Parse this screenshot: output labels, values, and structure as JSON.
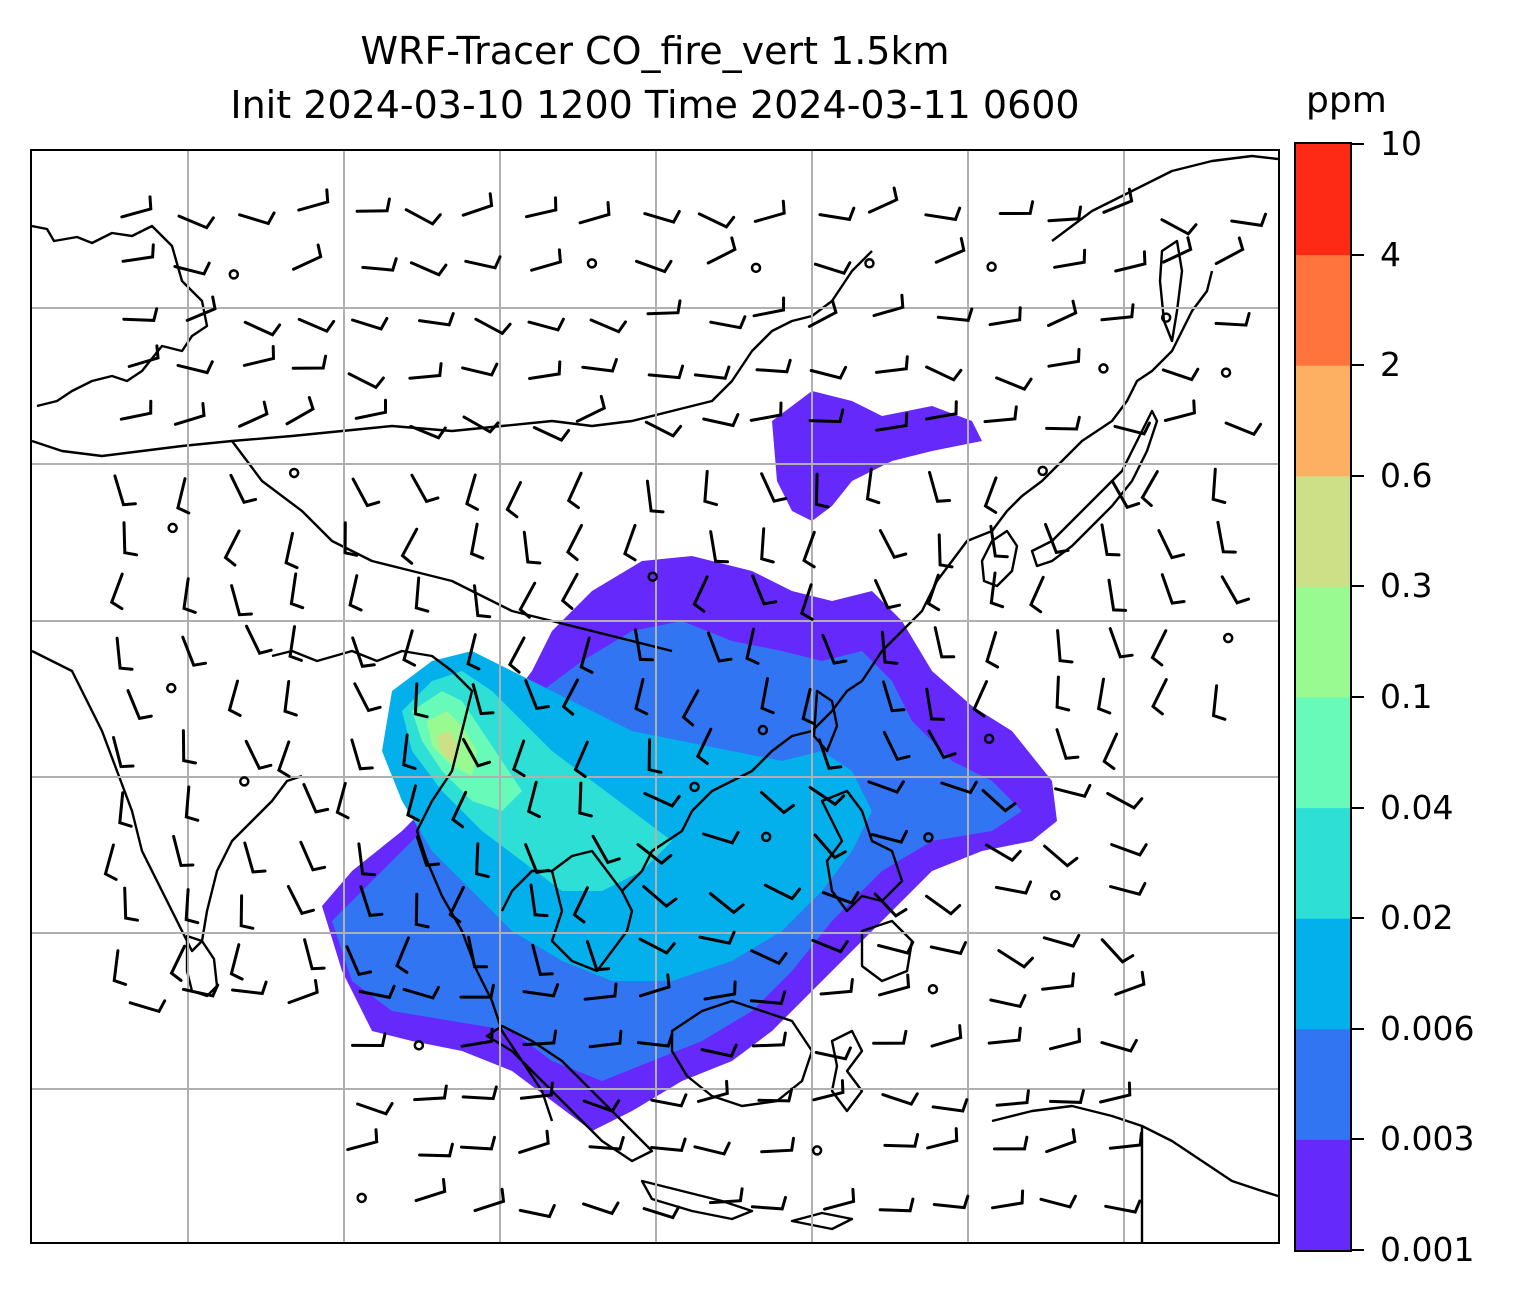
{
  "title": {
    "line1": "WRF-Tracer CO_fire_vert 1.5km",
    "line2": "Init 2024-03-10 1200 Time 2024-03-11 0600"
  },
  "colorbar": {
    "unit": "ppm",
    "levels": [
      "0.001",
      "0.003",
      "0.006",
      "0.02",
      "0.04",
      "0.1",
      "0.3",
      "0.6",
      "2",
      "4",
      "10"
    ],
    "colors": [
      "#6629fb",
      "#3175f2",
      "#03b0ec",
      "#2edfd6",
      "#68fab9",
      "#98fa90",
      "#cde087",
      "#fdaf62",
      "#ff743c",
      "#ff2a15"
    ]
  },
  "map": {
    "gridlines": "on",
    "plume_colors": [
      "#6629fb",
      "#3175f2",
      "#03b0ec",
      "#2edfd6",
      "#68fab9",
      "#98fa90",
      "#cde087"
    ]
  }
}
